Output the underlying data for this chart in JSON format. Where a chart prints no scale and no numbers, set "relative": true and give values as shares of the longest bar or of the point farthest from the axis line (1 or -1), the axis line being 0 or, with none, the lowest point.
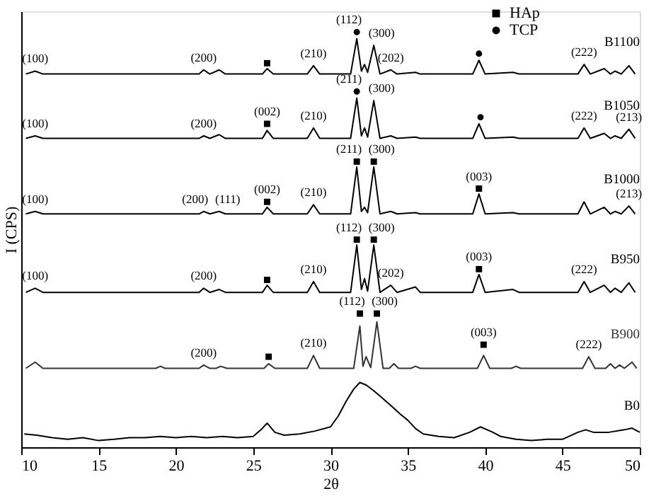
{
  "chart_data": {
    "type": "line",
    "relative": true,
    "xlabel": "2θ",
    "ylabel": "I (CPS)",
    "xlim": [
      10,
      50
    ],
    "xticks": [
      10,
      15,
      20,
      25,
      30,
      35,
      40,
      45,
      50
    ],
    "tick_labels": "x",
    "grid": false,
    "legend": "top",
    "line_style": "solid",
    "x": [
      10.3,
      10.9,
      11.4,
      21.5,
      21.8,
      22.2,
      22.8,
      23.2,
      25.6,
      25.9,
      26.3,
      28.5,
      28.9,
      29.3,
      31.3,
      31.7,
      32.0,
      32.2,
      32.4,
      32.8,
      33.2,
      33.9,
      34.3,
      35.5,
      35.8,
      39.2,
      39.6,
      40.0,
      41.8,
      42.2,
      46.0,
      46.4,
      46.8,
      47.7,
      48.1,
      48.4,
      48.8,
      49.3,
      49.7
    ],
    "series": [
      {
        "name": "B1100",
        "color": "#000000",
        "values": [
          0.899,
          0.906,
          0.899,
          0.899,
          0.909,
          0.899,
          0.909,
          0.899,
          0.899,
          0.912,
          0.899,
          0.899,
          0.919,
          0.899,
          0.899,
          0.984,
          0.906,
          0.922,
          0.903,
          0.968,
          0.899,
          0.909,
          0.899,
          0.903,
          0.899,
          0.899,
          0.932,
          0.899,
          0.903,
          0.899,
          0.899,
          0.922,
          0.899,
          0.912,
          0.899,
          0.906,
          0.899,
          0.919,
          0.899
        ]
      },
      {
        "name": "B1050",
        "color": "#000000",
        "values": [
          0.744,
          0.75,
          0.744,
          0.744,
          0.75,
          0.744,
          0.753,
          0.744,
          0.744,
          0.763,
          0.744,
          0.744,
          0.769,
          0.744,
          0.744,
          0.841,
          0.75,
          0.769,
          0.747,
          0.835,
          0.744,
          0.75,
          0.744,
          0.747,
          0.744,
          0.744,
          0.779,
          0.744,
          0.747,
          0.744,
          0.744,
          0.769,
          0.744,
          0.756,
          0.744,
          0.75,
          0.744,
          0.766,
          0.744
        ]
      },
      {
        "name": "B1000",
        "color": "#000000",
        "values": [
          0.562,
          0.568,
          0.562,
          0.562,
          0.568,
          0.562,
          0.568,
          0.562,
          0.562,
          0.578,
          0.562,
          0.562,
          0.584,
          0.562,
          0.562,
          0.675,
          0.568,
          0.578,
          0.565,
          0.675,
          0.562,
          0.568,
          0.562,
          0.565,
          0.562,
          0.562,
          0.61,
          0.562,
          0.565,
          0.562,
          0.562,
          0.591,
          0.562,
          0.578,
          0.562,
          0.568,
          0.562,
          0.581,
          0.562
        ]
      },
      {
        "name": "B950",
        "color": "#000000",
        "values": [
          0.373,
          0.383,
          0.373,
          0.373,
          0.383,
          0.373,
          0.38,
          0.373,
          0.373,
          0.39,
          0.373,
          0.373,
          0.399,
          0.373,
          0.373,
          0.487,
          0.38,
          0.406,
          0.376,
          0.487,
          0.373,
          0.39,
          0.373,
          0.386,
          0.373,
          0.373,
          0.416,
          0.373,
          0.38,
          0.373,
          0.373,
          0.399,
          0.373,
          0.39,
          0.373,
          0.383,
          0.373,
          0.396,
          0.373
        ]
      },
      {
        "name": "B900",
        "color": "#333333",
        "x": [
          10.3,
          10.9,
          11.4,
          18.7,
          19.0,
          19.3,
          21.5,
          21.8,
          22.2,
          22.6,
          22.9,
          23.3,
          25.7,
          26.0,
          26.4,
          28.5,
          28.9,
          29.3,
          31.5,
          31.9,
          32.1,
          32.3,
          32.6,
          33.0,
          33.4,
          33.8,
          34.1,
          34.4,
          35.2,
          35.5,
          35.8,
          39.5,
          39.9,
          40.3,
          41.7,
          42.0,
          42.3,
          46.3,
          46.7,
          47.1,
          47.8,
          48.1,
          48.4,
          48.7,
          49.0,
          49.5,
          49.8
        ],
        "values": [
          0.19,
          0.205,
          0.19,
          0.19,
          0.195,
          0.19,
          0.19,
          0.198,
          0.19,
          0.19,
          0.195,
          0.19,
          0.19,
          0.201,
          0.19,
          0.19,
          0.221,
          0.19,
          0.19,
          0.292,
          0.195,
          0.218,
          0.192,
          0.302,
          0.19,
          0.19,
          0.201,
          0.19,
          0.19,
          0.195,
          0.19,
          0.19,
          0.221,
          0.19,
          0.19,
          0.195,
          0.19,
          0.19,
          0.218,
          0.19,
          0.19,
          0.201,
          0.19,
          0.198,
          0.19,
          0.205,
          0.19
        ]
      },
      {
        "name": "B0",
        "color": "#000000",
        "x": [
          10.2,
          11,
          12,
          13,
          14,
          15,
          16,
          17,
          18,
          19,
          20,
          21,
          22,
          23,
          24,
          25,
          25.5,
          25.9,
          26.4,
          27,
          28,
          29,
          30,
          30.5,
          31,
          31.5,
          31.9,
          32.3,
          32.8,
          33.3,
          34,
          34.5,
          35,
          35.5,
          36,
          37,
          38,
          39,
          39.7,
          40.5,
          41,
          42,
          43,
          44,
          45,
          46,
          46.5,
          47,
          48,
          49,
          49.5,
          50
        ],
        "values": [
          0.032,
          0.029,
          0.023,
          0.019,
          0.023,
          0.016,
          0.019,
          0.023,
          0.023,
          0.026,
          0.023,
          0.026,
          0.023,
          0.026,
          0.023,
          0.026,
          0.042,
          0.058,
          0.036,
          0.029,
          0.032,
          0.039,
          0.049,
          0.075,
          0.11,
          0.14,
          0.156,
          0.15,
          0.136,
          0.12,
          0.097,
          0.08,
          0.065,
          0.045,
          0.032,
          0.026,
          0.023,
          0.036,
          0.049,
          0.036,
          0.026,
          0.019,
          0.016,
          0.019,
          0.019,
          0.036,
          0.042,
          0.036,
          0.036,
          0.042,
          0.046,
          0.036
        ]
      },
      {
        "type": "scatter",
        "name": "HAp",
        "marker": "square",
        "color": "#000000",
        "x": [
          25.9,
          25.9,
          25.9,
          31.7,
          32.8,
          39.6,
          25.9,
          31.7,
          32.8,
          39.6,
          26.0,
          31.9,
          33.0,
          39.9
        ],
        "values": [
          0.925,
          0.779,
          0.591,
          0.688,
          0.688,
          0.623,
          0.403,
          0.5,
          0.5,
          0.429,
          0.218,
          0.322,
          0.322,
          0.247
        ]
      },
      {
        "type": "scatter",
        "name": "TCP",
        "marker": "circle",
        "color": "#000000",
        "x": [
          31.7,
          39.6,
          31.7,
          39.7
        ],
        "values": [
          1.0,
          0.948,
          0.857,
          0.795
        ]
      }
    ],
    "annotations": [
      {
        "text": "(100)",
        "x": 10.9,
        "y": 0.906
      },
      {
        "text": "(200)",
        "x": 21.8,
        "y": 0.909
      },
      {
        "text": "(210)",
        "x": 28.9,
        "y": 0.919
      },
      {
        "text": "(112)",
        "x": 31.7,
        "y": 1.0
      },
      {
        "text": "(300)",
        "x": 32.8,
        "y": 0.968
      },
      {
        "text": "(202)",
        "x": 33.9,
        "y": 0.909
      },
      {
        "text": "(222)",
        "x": 46.4,
        "y": 0.922
      },
      {
        "text": "(100)",
        "x": 10.9,
        "y": 0.75
      },
      {
        "text": "(200)",
        "x": 21.8,
        "y": 0.75
      },
      {
        "text": "(002)",
        "x": 25.9,
        "y": 0.779
      },
      {
        "text": "(210)",
        "x": 28.9,
        "y": 0.769
      },
      {
        "text": "(211)",
        "x": 31.7,
        "y": 0.857
      },
      {
        "text": "(300)",
        "x": 32.8,
        "y": 0.835
      },
      {
        "text": "(222)",
        "x": 46.4,
        "y": 0.769
      },
      {
        "text": "(213)",
        "x": 49.3,
        "y": 0.766
      },
      {
        "text": "(100)",
        "x": 10.9,
        "y": 0.568
      },
      {
        "text": "(200)",
        "x": 21.8,
        "y": 0.568
      },
      {
        "text": "(111)",
        "x": 22.8,
        "y": 0.568
      },
      {
        "text": "(002)",
        "x": 25.9,
        "y": 0.591
      },
      {
        "text": "(210)",
        "x": 28.9,
        "y": 0.584
      },
      {
        "text": "(211)",
        "x": 31.7,
        "y": 0.688
      },
      {
        "text": "(300)",
        "x": 32.8,
        "y": 0.688
      },
      {
        "text": "(003)",
        "x": 39.6,
        "y": 0.623
      },
      {
        "text": "(213)",
        "x": 49.3,
        "y": 0.581
      },
      {
        "text": "(100)",
        "x": 10.9,
        "y": 0.383
      },
      {
        "text": "(200)",
        "x": 21.8,
        "y": 0.383
      },
      {
        "text": "(210)",
        "x": 28.9,
        "y": 0.399
      },
      {
        "text": "(112)",
        "x": 31.7,
        "y": 0.5
      },
      {
        "text": "(300)",
        "x": 32.8,
        "y": 0.5
      },
      {
        "text": "(202)",
        "x": 33.9,
        "y": 0.39
      },
      {
        "text": "(003)",
        "x": 39.6,
        "y": 0.429
      },
      {
        "text": "(222)",
        "x": 46.4,
        "y": 0.399
      },
      {
        "text": "(200)",
        "x": 21.8,
        "y": 0.198
      },
      {
        "text": "(210)",
        "x": 28.9,
        "y": 0.221
      },
      {
        "text": "(112)",
        "x": 31.9,
        "y": 0.322
      },
      {
        "text": "(300)",
        "x": 33.0,
        "y": 0.322
      },
      {
        "text": "(003)",
        "x": 39.9,
        "y": 0.247
      },
      {
        "text": "(222)",
        "x": 46.7,
        "y": 0.218
      }
    ]
  }
}
